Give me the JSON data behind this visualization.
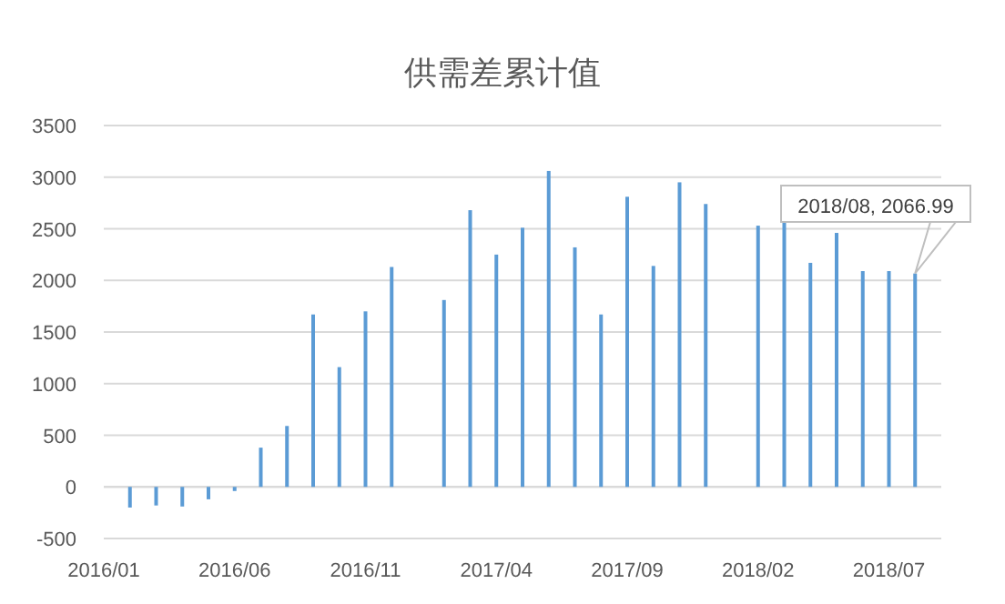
{
  "chart_data": {
    "type": "bar",
    "title": "供需差累计值",
    "x": [
      "2016-02",
      "2016-03",
      "2016-04",
      "2016-05",
      "2016-06",
      "2016-07",
      "2016-08",
      "2016-09",
      "2016-10",
      "2016-11",
      "2016-12",
      "2017-02",
      "2017-03",
      "2017-04",
      "2017-05",
      "2017-06",
      "2017-07",
      "2017-08",
      "2017-09",
      "2017-10",
      "2017-11",
      "2017-12",
      "2018-02",
      "2018-03",
      "2018-04",
      "2018-05",
      "2018-06",
      "2018-07",
      "2018-08"
    ],
    "values": [
      -200,
      -180,
      -190,
      -120,
      -40,
      380,
      590,
      1670,
      1160,
      1700,
      2130,
      1810,
      2680,
      2250,
      2510,
      3060,
      2320,
      1670,
      2810,
      2140,
      2950,
      2740,
      2530,
      2570,
      2170,
      2460,
      2090,
      2090,
      2066.99
    ],
    "color": "#5b9bd5",
    "ylim": [
      -500,
      3500
    ],
    "yticks": [
      -500,
      0,
      500,
      1000,
      1500,
      2000,
      2500,
      3000,
      3500
    ],
    "xlim": [
      "2016-01",
      "2018-09"
    ],
    "xticks": [
      {
        "value": "2016-01",
        "label": "2016/01"
      },
      {
        "value": "2016-06",
        "label": "2016/06"
      },
      {
        "value": "2016-11",
        "label": "2016/11"
      },
      {
        "value": "2017-04",
        "label": "2017/04"
      },
      {
        "value": "2017-09",
        "label": "2017/09"
      },
      {
        "value": "2018-02",
        "label": "2018/02"
      },
      {
        "value": "2018-07",
        "label": "2018/07"
      }
    ],
    "grid": "y",
    "annotations": [
      {
        "text": "2018/08, 2066.99",
        "x": "2018-08",
        "y": 2066.99
      }
    ]
  }
}
